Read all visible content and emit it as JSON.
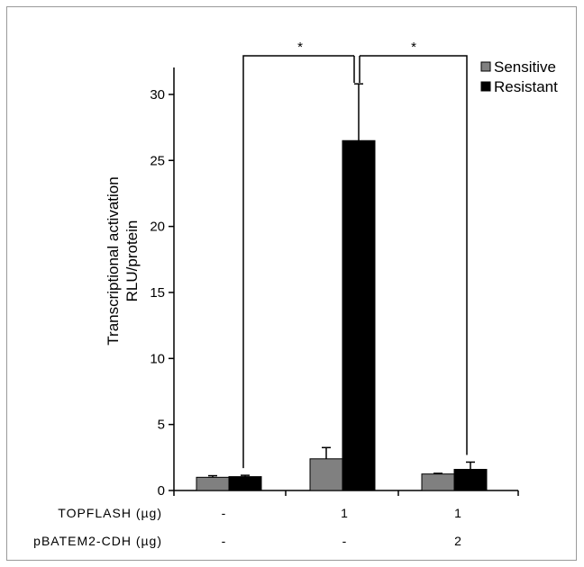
{
  "chart_data": {
    "type": "bar",
    "ylabel_line1": "Transcriptional activation",
    "ylabel_line2": "RLU/protein",
    "ylim": [
      0,
      32
    ],
    "yticks": [
      0,
      5,
      10,
      15,
      20,
      25,
      30
    ],
    "legend_position": "top-right",
    "series": [
      {
        "name": "Sensitive",
        "color": "#808080",
        "values": [
          1.0,
          2.4,
          1.25
        ],
        "errors": [
          0.12,
          0.85,
          0.05
        ]
      },
      {
        "name": "Resistant",
        "color": "#000000",
        "values": [
          1.05,
          26.5,
          1.6
        ],
        "errors": [
          0.1,
          4.3,
          0.55
        ]
      }
    ],
    "conditions": [
      {
        "label": "TOPFLASH (µg)",
        "values": [
          "-",
          "1",
          "1"
        ]
      },
      {
        "label": "pBATEM2-CDH (µg)",
        "values": [
          "-",
          "-",
          "2"
        ]
      }
    ],
    "significance": [
      {
        "label": "*"
      },
      {
        "label": "*"
      }
    ]
  }
}
